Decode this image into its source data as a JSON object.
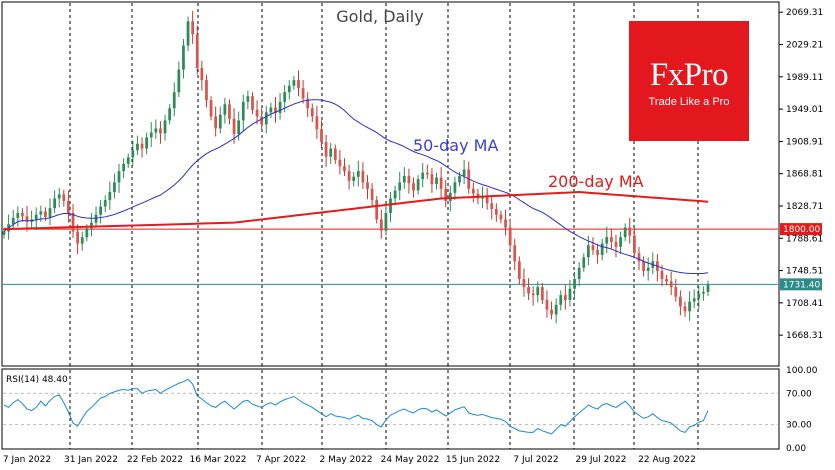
{
  "chart_data": [
    {
      "type": "candlestick",
      "title": "Gold, Daily",
      "y_ticks": [
        2069.31,
        2029.21,
        1989.11,
        1949.01,
        1908.91,
        1868.81,
        1828.71,
        1788.61,
        1748.51,
        1708.41,
        1668.31
      ],
      "ylim": [
        1630,
        2082
      ],
      "x_ticks": [
        "7 Jan 2022",
        "31 Jan 2022",
        "22 Feb 2022",
        "16 Mar 2022",
        "7 Apr 2022",
        "2 May 2022",
        "24 May 2022",
        "15 Jun 2022",
        "7 Jul 2022",
        "29 Jul 2022",
        "22 Aug 2022"
      ],
      "horizontal_lines": [
        {
          "value": 1800.0,
          "label": "1800.00",
          "color": "#e31b1b"
        },
        {
          "value": 1731.4,
          "label": "1731.40",
          "color": "#2e8b8b"
        }
      ],
      "annotations": [
        {
          "text": "50-day MA",
          "color": "#3b3fd8"
        },
        {
          "text": "200-day MA",
          "color": "#e31b1b"
        }
      ],
      "close": [
        1797,
        1806,
        1814,
        1820,
        1816,
        1809,
        1812,
        1818,
        1822,
        1815,
        1826,
        1838,
        1843,
        1835,
        1820,
        1797,
        1782,
        1790,
        1801,
        1808,
        1818,
        1828,
        1836,
        1846,
        1858,
        1872,
        1881,
        1889,
        1898,
        1906,
        1900,
        1914,
        1920,
        1925,
        1919,
        1935,
        1950,
        1970,
        1998,
        2028,
        2058,
        2042,
        2000,
        1985,
        1960,
        1940,
        1925,
        1942,
        1955,
        1937,
        1918,
        1935,
        1958,
        1965,
        1948,
        1940,
        1930,
        1945,
        1951,
        1944,
        1958,
        1970,
        1978,
        1985,
        1975,
        1962,
        1950,
        1940,
        1924,
        1908,
        1890,
        1900,
        1886,
        1878,
        1872,
        1860,
        1865,
        1872,
        1858,
        1850,
        1836,
        1812,
        1798,
        1820,
        1838,
        1848,
        1858,
        1866,
        1857,
        1848,
        1862,
        1870,
        1868,
        1856,
        1864,
        1850,
        1835,
        1845,
        1858,
        1866,
        1874,
        1850,
        1844,
        1838,
        1840,
        1832,
        1825,
        1818,
        1812,
        1802,
        1780,
        1760,
        1738,
        1728,
        1720,
        1718,
        1728,
        1712,
        1700,
        1694,
        1706,
        1718,
        1712,
        1726,
        1738,
        1752,
        1765,
        1780,
        1774,
        1768,
        1782,
        1790,
        1784,
        1778,
        1790,
        1802,
        1792,
        1770,
        1760,
        1748,
        1752,
        1760,
        1748,
        1738,
        1735,
        1728,
        1716,
        1704,
        1698,
        1710,
        1714,
        1720,
        1722,
        1731
      ]
    },
    {
      "type": "line",
      "label": "RSI(14) 48.40",
      "y_ticks": [
        100.0,
        70.0,
        30.0,
        0.0
      ],
      "ylim": [
        0,
        100
      ],
      "levels": [
        70,
        30
      ],
      "values": [
        55,
        52,
        58,
        62,
        57,
        50,
        48,
        52,
        60,
        54,
        61,
        66,
        68,
        58,
        46,
        32,
        28,
        38,
        47,
        52,
        58,
        64,
        66,
        70,
        72,
        74,
        75,
        74,
        76,
        76,
        70,
        73,
        74,
        75,
        70,
        74,
        77,
        80,
        83,
        85,
        88,
        82,
        67,
        63,
        58,
        54,
        52,
        57,
        60,
        55,
        50,
        55,
        60,
        61,
        56,
        54,
        52,
        56,
        58,
        55,
        59,
        62,
        64,
        66,
        62,
        58,
        55,
        52,
        48,
        44,
        40,
        44,
        41,
        40,
        39,
        37,
        40,
        42,
        38,
        37,
        35,
        30,
        27,
        36,
        42,
        45,
        48,
        50,
        47,
        45,
        49,
        51,
        50,
        46,
        49,
        45,
        41,
        45,
        49,
        51,
        53,
        45,
        43,
        42,
        43,
        41,
        39,
        38,
        37,
        34,
        28,
        25,
        22,
        21,
        20,
        20,
        25,
        22,
        20,
        18,
        24,
        30,
        28,
        34,
        40,
        45,
        50,
        55,
        52,
        50,
        55,
        57,
        54,
        52,
        56,
        60,
        54,
        46,
        42,
        38,
        40,
        44,
        39,
        35,
        34,
        32,
        27,
        22,
        20,
        27,
        29,
        33,
        35,
        48
      ]
    }
  ],
  "branding": {
    "name": "FxPro",
    "tagline": "Trade Like a Pro",
    "color": "#e3171e"
  }
}
